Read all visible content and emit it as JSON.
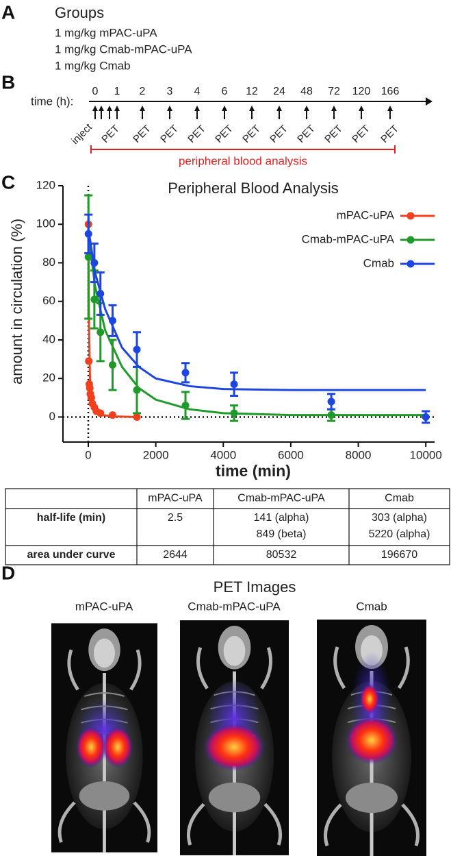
{
  "panel_a": {
    "letter": "A",
    "title": "Groups",
    "groups": [
      "1 mg/kg mPAC-uPA",
      "1 mg/kg Cmab-mPAC-uPA",
      "1 mg/kg Cmab"
    ]
  },
  "panel_b": {
    "letter": "B",
    "axis_label": "time (h):",
    "time_labels": [
      "0",
      "1",
      "2",
      "3",
      "4",
      "6",
      "12",
      "24",
      "48",
      "72",
      "120",
      "166"
    ],
    "inject_label": "inject",
    "pet_label": "PET",
    "range_label": "peripheral blood analysis"
  },
  "panel_c": {
    "letter": "C"
  },
  "chart_data": {
    "type": "scatter",
    "title": "Peripheral Blood Analysis",
    "x_label": "time (min)",
    "y_label": "amount in circulation (%)",
    "xlim": [
      -750,
      10260
    ],
    "ylim": [
      -13,
      120
    ],
    "xticks": [
      0,
      2000,
      4000,
      6000,
      8000,
      10000
    ],
    "yticks": [
      0,
      20,
      40,
      60,
      80,
      100,
      120
    ],
    "legend": "upper right",
    "series": [
      {
        "name": "mPAC-uPA",
        "color": "#f0401e",
        "x": [
          5,
          10,
          15,
          30,
          45,
          60,
          90,
          120,
          180,
          240,
          360,
          720,
          1440
        ],
        "values": [
          100,
          83,
          29,
          17,
          15,
          12,
          10,
          7,
          5,
          3,
          2,
          1,
          0
        ],
        "fit": {
          "x": [
            0,
            20,
            50,
            100,
            200,
            400,
            800,
            1440
          ],
          "values": [
            100,
            50,
            20,
            8,
            3,
            1,
            0.3,
            0
          ]
        }
      },
      {
        "name": "Cmab-mPAC-uPA",
        "color": "#1f9a2a",
        "x": [
          5,
          180,
          360,
          720,
          1440,
          2880,
          4320,
          7200
        ],
        "values": [
          83,
          61,
          44,
          27,
          14,
          6,
          2,
          1
        ],
        "errors": [
          32,
          15,
          15,
          13,
          12,
          7,
          4,
          3
        ],
        "fit": {
          "x": [
            0,
            200,
            500,
            1000,
            1500,
            2000,
            3000,
            4000,
            6000,
            8000,
            10000
          ],
          "values": [
            95,
            68,
            45,
            26,
            15,
            9,
            4,
            2,
            1,
            1,
            1
          ]
        }
      },
      {
        "name": "Cmab",
        "color": "#1d45e0",
        "x": [
          5,
          180,
          360,
          720,
          1440,
          2880,
          4320,
          7200,
          10000
        ],
        "values": [
          95,
          80,
          64,
          50,
          35,
          23,
          17,
          8,
          0
        ],
        "errors": [
          10,
          10,
          11,
          8,
          9,
          5,
          6,
          4,
          3
        ],
        "fit": {
          "x": [
            0,
            200,
            500,
            1000,
            1500,
            2000,
            3000,
            4000,
            6000,
            8000,
            10000
          ],
          "values": [
            98,
            75,
            56,
            36,
            26,
            20,
            16,
            14.5,
            14,
            14,
            14
          ]
        }
      }
    ]
  },
  "table": {
    "header": [
      "",
      "mPAC-uPA",
      "Cmab-mPAC-uPA",
      "Cmab"
    ],
    "rows": [
      [
        "half-life (min)",
        "2.5",
        [
          "141 (alpha)",
          "849 (beta)"
        ],
        [
          "303 (alpha)",
          "5220 (alpha)"
        ]
      ],
      [
        "area under curve",
        "2644",
        "80532",
        "196670"
      ]
    ]
  },
  "panel_d": {
    "letter": "D",
    "title": "PET Images",
    "labels": [
      "mPAC-uPA",
      "Cmab-mPAC-uPA",
      "Cmab"
    ]
  }
}
